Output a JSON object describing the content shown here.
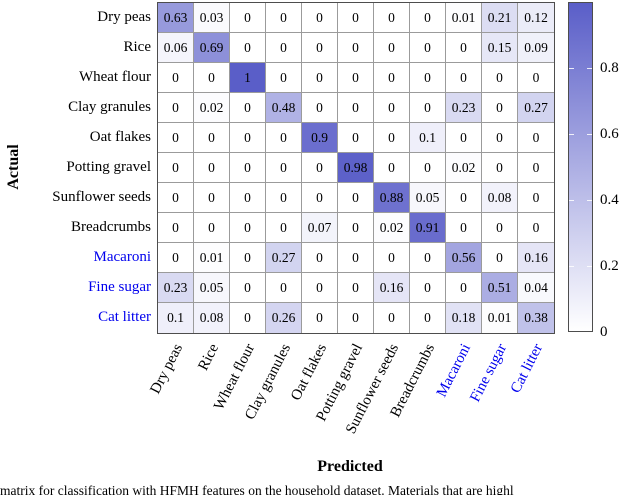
{
  "figure": {
    "y_axis_title": "Actual",
    "x_axis_title": "Predicted",
    "caption_fragment": "matrix for classification with HFMH features on the household dataset. Materials that are highl",
    "highlight_label_color": "#0000ee",
    "grid_line_color": "#9b9b9b",
    "border_color": "#4d4d4d"
  },
  "chart_data": {
    "type": "heatmap",
    "title": "",
    "xlabel": "Predicted",
    "ylabel": "Actual",
    "categories": [
      "Dry peas",
      "Rice",
      "Wheat flour",
      "Clay granules",
      "Oat flakes",
      "Potting gravel",
      "Sunflower seeds",
      "Breadcrumbs",
      "Macaroni",
      "Fine sugar",
      "Cat litter"
    ],
    "highlighted_categories": [
      "Macaroni",
      "Fine sugar",
      "Cat litter"
    ],
    "rows": [
      [
        0.63,
        0.03,
        0,
        0,
        0,
        0,
        0,
        0,
        0.01,
        0.21,
        0.12
      ],
      [
        0.06,
        0.69,
        0,
        0,
        0,
        0,
        0,
        0,
        0,
        0.15,
        0.09
      ],
      [
        0,
        0,
        1,
        0,
        0,
        0,
        0,
        0,
        0,
        0,
        0
      ],
      [
        0,
        0.02,
        0,
        0.48,
        0,
        0,
        0,
        0,
        0.23,
        0,
        0.27
      ],
      [
        0,
        0,
        0,
        0,
        0.9,
        0,
        0,
        0.1,
        0,
        0,
        0
      ],
      [
        0,
        0,
        0,
        0,
        0,
        0.98,
        0,
        0,
        0.02,
        0,
        0
      ],
      [
        0,
        0,
        0,
        0,
        0,
        0,
        0.88,
        0.05,
        0,
        0.08,
        0
      ],
      [
        0,
        0,
        0,
        0,
        0.07,
        0,
        0.02,
        0.91,
        0,
        0,
        0
      ],
      [
        0,
        0.01,
        0,
        0.27,
        0,
        0,
        0,
        0,
        0.56,
        0,
        0.16
      ],
      [
        0.23,
        0.05,
        0,
        0,
        0,
        0,
        0.16,
        0,
        0,
        0.51,
        0.04
      ],
      [
        0.1,
        0.08,
        0,
        0.26,
        0,
        0,
        0,
        0,
        0.18,
        0.01,
        0.38
      ]
    ],
    "colorbar": {
      "min": 0,
      "max": 1,
      "tick_values": [
        0,
        0.2,
        0.4,
        0.6,
        0.8
      ],
      "tick_labels": [
        "0",
        "0.2",
        "0.4",
        "0.6",
        "0.8"
      ],
      "position": "right"
    },
    "colormap": {
      "low": "#ffffff",
      "high": "#5a5ec8"
    },
    "legend_position": "none",
    "grid": true
  }
}
